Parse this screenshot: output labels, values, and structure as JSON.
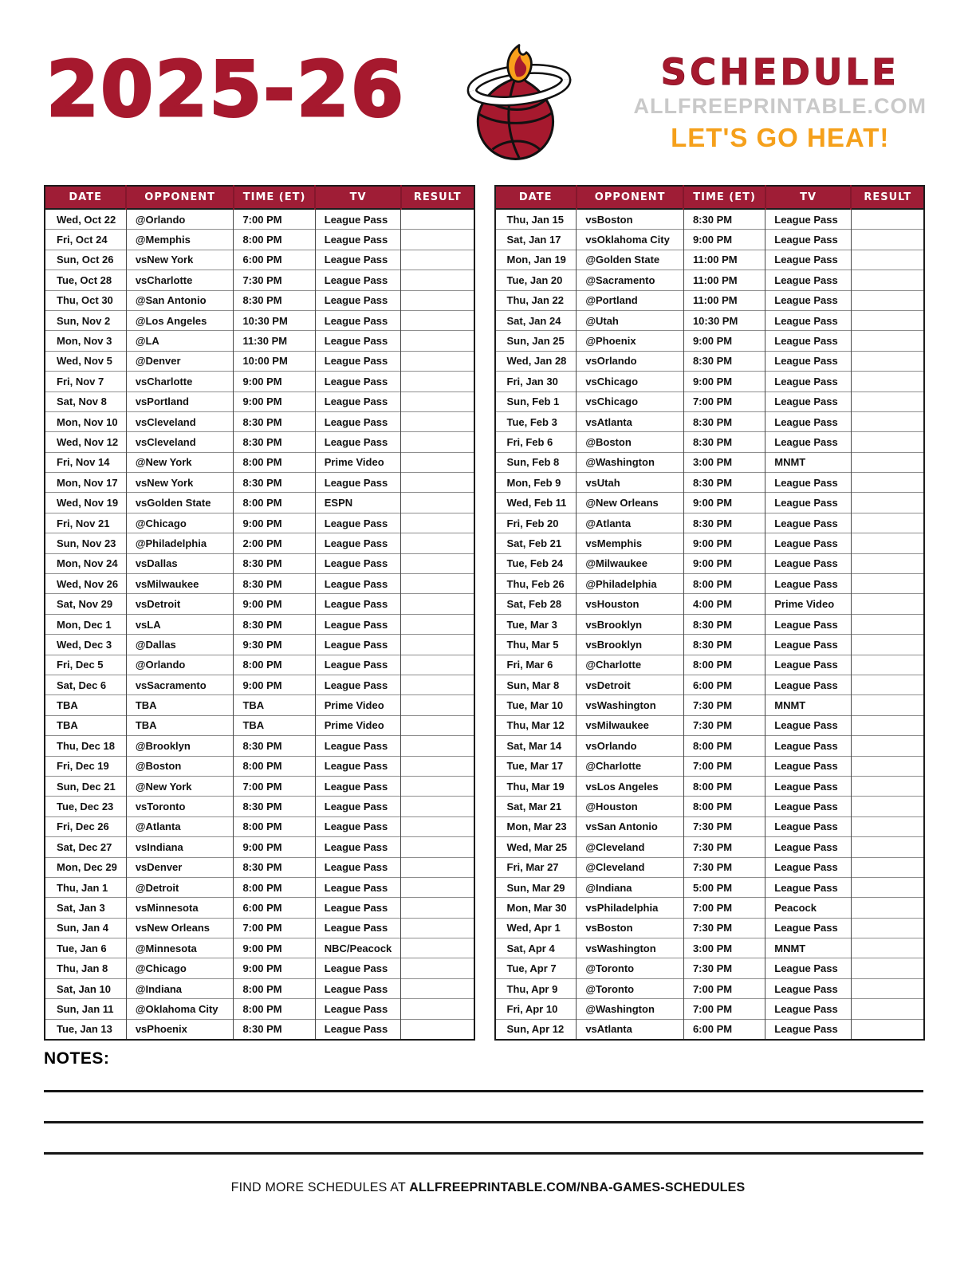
{
  "header": {
    "season": "2025-26",
    "schedule_title": "SCHEDULE",
    "site": "ALLFREEPRINTABLE.COM",
    "tagline": "LET'S GO HEAT!",
    "logo_icon": "miami-heat-flaming-basketball-icon"
  },
  "table_headers": [
    "DATE",
    "OPPONENT",
    "TIME (ET)",
    "TV",
    "RESULT"
  ],
  "left_rows": [
    [
      "Wed, Oct 22",
      "@Orlando",
      "7:00 PM",
      "League Pass",
      ""
    ],
    [
      "Fri, Oct 24",
      "@Memphis",
      "8:00 PM",
      "League Pass",
      ""
    ],
    [
      "Sun, Oct 26",
      "vsNew York",
      "6:00 PM",
      "League Pass",
      ""
    ],
    [
      "Tue, Oct 28",
      "vsCharlotte",
      "7:30 PM",
      "League Pass",
      ""
    ],
    [
      "Thu, Oct 30",
      "@San Antonio",
      "8:30 PM",
      "League Pass",
      ""
    ],
    [
      "Sun, Nov 2",
      "@Los Angeles",
      "10:30 PM",
      "League Pass",
      ""
    ],
    [
      "Mon, Nov 3",
      "@LA",
      "11:30 PM",
      "League Pass",
      ""
    ],
    [
      "Wed, Nov 5",
      "@Denver",
      "10:00 PM",
      "League Pass",
      ""
    ],
    [
      "Fri, Nov 7",
      "vsCharlotte",
      "9:00 PM",
      "League Pass",
      ""
    ],
    [
      "Sat, Nov 8",
      "vsPortland",
      "9:00 PM",
      "League Pass",
      ""
    ],
    [
      "Mon, Nov 10",
      "vsCleveland",
      "8:30 PM",
      "League Pass",
      ""
    ],
    [
      "Wed, Nov 12",
      "vsCleveland",
      "8:30 PM",
      "League Pass",
      ""
    ],
    [
      "Fri, Nov 14",
      "@New York",
      "8:00 PM",
      "Prime Video",
      ""
    ],
    [
      "Mon, Nov 17",
      "vsNew York",
      "8:30 PM",
      "League Pass",
      ""
    ],
    [
      "Wed, Nov 19",
      "vsGolden State",
      "8:00 PM",
      "ESPN",
      ""
    ],
    [
      "Fri, Nov 21",
      "@Chicago",
      "9:00 PM",
      "League Pass",
      ""
    ],
    [
      "Sun, Nov 23",
      "@Philadelphia",
      "2:00 PM",
      "League Pass",
      ""
    ],
    [
      "Mon, Nov 24",
      "vsDallas",
      "8:30 PM",
      "League Pass",
      ""
    ],
    [
      "Wed, Nov 26",
      "vsMilwaukee",
      "8:30 PM",
      "League Pass",
      ""
    ],
    [
      "Sat, Nov 29",
      "vsDetroit",
      "9:00 PM",
      "League Pass",
      ""
    ],
    [
      "Mon, Dec 1",
      "vsLA",
      "8:30 PM",
      "League Pass",
      ""
    ],
    [
      "Wed, Dec 3",
      "@Dallas",
      "9:30 PM",
      "League Pass",
      ""
    ],
    [
      "Fri, Dec 5",
      "@Orlando",
      "8:00 PM",
      "League Pass",
      ""
    ],
    [
      "Sat, Dec 6",
      "vsSacramento",
      "9:00 PM",
      "League Pass",
      ""
    ],
    [
      "TBA",
      "TBA",
      "TBA",
      "Prime Video",
      ""
    ],
    [
      "TBA",
      "TBA",
      "TBA",
      "Prime Video",
      ""
    ],
    [
      "Thu, Dec 18",
      "@Brooklyn",
      "8:30 PM",
      "League Pass",
      ""
    ],
    [
      "Fri, Dec 19",
      "@Boston",
      "8:00 PM",
      "League Pass",
      ""
    ],
    [
      "Sun, Dec 21",
      "@New York",
      "7:00 PM",
      "League Pass",
      ""
    ],
    [
      "Tue, Dec 23",
      "vsToronto",
      "8:30 PM",
      "League Pass",
      ""
    ],
    [
      "Fri, Dec 26",
      "@Atlanta",
      "8:00 PM",
      "League Pass",
      ""
    ],
    [
      "Sat, Dec 27",
      "vsIndiana",
      "9:00 PM",
      "League Pass",
      ""
    ],
    [
      "Mon, Dec 29",
      "vsDenver",
      "8:30 PM",
      "League Pass",
      ""
    ],
    [
      "Thu, Jan 1",
      "@Detroit",
      "8:00 PM",
      "League Pass",
      ""
    ],
    [
      "Sat, Jan 3",
      "vsMinnesota",
      "6:00 PM",
      "League Pass",
      ""
    ],
    [
      "Sun, Jan 4",
      "vsNew Orleans",
      "7:00 PM",
      "League Pass",
      ""
    ],
    [
      "Tue, Jan 6",
      "@Minnesota",
      "9:00 PM",
      "NBC/Peacock",
      ""
    ],
    [
      "Thu, Jan 8",
      "@Chicago",
      "9:00 PM",
      "League Pass",
      ""
    ],
    [
      "Sat, Jan 10",
      "@Indiana",
      "8:00 PM",
      "League Pass",
      ""
    ],
    [
      "Sun, Jan 11",
      "@Oklahoma City",
      "8:00 PM",
      "League Pass",
      ""
    ],
    [
      "Tue, Jan 13",
      "vsPhoenix",
      "8:30 PM",
      "League Pass",
      ""
    ]
  ],
  "right_rows": [
    [
      "Thu, Jan 15",
      "vsBoston",
      "8:30 PM",
      "League Pass",
      ""
    ],
    [
      "Sat, Jan 17",
      "vsOklahoma City",
      "9:00 PM",
      "League Pass",
      ""
    ],
    [
      "Mon, Jan 19",
      "@Golden State",
      "11:00 PM",
      "League Pass",
      ""
    ],
    [
      "Tue, Jan 20",
      "@Sacramento",
      "11:00 PM",
      "League Pass",
      ""
    ],
    [
      "Thu, Jan 22",
      "@Portland",
      "11:00 PM",
      "League Pass",
      ""
    ],
    [
      "Sat, Jan 24",
      "@Utah",
      "10:30 PM",
      "League Pass",
      ""
    ],
    [
      "Sun, Jan 25",
      "@Phoenix",
      "9:00 PM",
      "League Pass",
      ""
    ],
    [
      "Wed, Jan 28",
      "vsOrlando",
      "8:30 PM",
      "League Pass",
      ""
    ],
    [
      "Fri, Jan 30",
      "vsChicago",
      "9:00 PM",
      "League Pass",
      ""
    ],
    [
      "Sun, Feb 1",
      "vsChicago",
      "7:00 PM",
      "League Pass",
      ""
    ],
    [
      "Tue, Feb 3",
      "vsAtlanta",
      "8:30 PM",
      "League Pass",
      ""
    ],
    [
      "Fri, Feb 6",
      "@Boston",
      "8:30 PM",
      "League Pass",
      ""
    ],
    [
      "Sun, Feb 8",
      "@Washington",
      "3:00 PM",
      "MNMT",
      ""
    ],
    [
      "Mon, Feb 9",
      "vsUtah",
      "8:30 PM",
      "League Pass",
      ""
    ],
    [
      "Wed, Feb 11",
      "@New Orleans",
      "9:00 PM",
      "League Pass",
      ""
    ],
    [
      "Fri, Feb 20",
      "@Atlanta",
      "8:30 PM",
      "League Pass",
      ""
    ],
    [
      "Sat, Feb 21",
      "vsMemphis",
      "9:00 PM",
      "League Pass",
      ""
    ],
    [
      "Tue, Feb 24",
      "@Milwaukee",
      "9:00 PM",
      "League Pass",
      ""
    ],
    [
      "Thu, Feb 26",
      "@Philadelphia",
      "8:00 PM",
      "League Pass",
      ""
    ],
    [
      "Sat, Feb 28",
      "vsHouston",
      "4:00 PM",
      "Prime Video",
      ""
    ],
    [
      "Tue, Mar 3",
      "vsBrooklyn",
      "8:30 PM",
      "League Pass",
      ""
    ],
    [
      "Thu, Mar 5",
      "vsBrooklyn",
      "8:30 PM",
      "League Pass",
      ""
    ],
    [
      "Fri, Mar 6",
      "@Charlotte",
      "8:00 PM",
      "League Pass",
      ""
    ],
    [
      "Sun, Mar 8",
      "vsDetroit",
      "6:00 PM",
      "League Pass",
      ""
    ],
    [
      "Tue, Mar 10",
      "vsWashington",
      "7:30 PM",
      "MNMT",
      ""
    ],
    [
      "Thu, Mar 12",
      "vsMilwaukee",
      "7:30 PM",
      "League Pass",
      ""
    ],
    [
      "Sat, Mar 14",
      "vsOrlando",
      "8:00 PM",
      "League Pass",
      ""
    ],
    [
      "Tue, Mar 17",
      "@Charlotte",
      "7:00 PM",
      "League Pass",
      ""
    ],
    [
      "Thu, Mar 19",
      "vsLos Angeles",
      "8:00 PM",
      "League Pass",
      ""
    ],
    [
      "Sat, Mar 21",
      "@Houston",
      "8:00 PM",
      "League Pass",
      ""
    ],
    [
      "Mon, Mar 23",
      "vsSan Antonio",
      "7:30 PM",
      "League Pass",
      ""
    ],
    [
      "Wed, Mar 25",
      "@Cleveland",
      "7:30 PM",
      "League Pass",
      ""
    ],
    [
      "Fri, Mar 27",
      "@Cleveland",
      "7:30 PM",
      "League Pass",
      ""
    ],
    [
      "Sun, Mar 29",
      "@Indiana",
      "5:00 PM",
      "League Pass",
      ""
    ],
    [
      "Mon, Mar 30",
      "vsPhiladelphia",
      "7:00 PM",
      "Peacock",
      ""
    ],
    [
      "Wed, Apr 1",
      "vsBoston",
      "7:30 PM",
      "League Pass",
      ""
    ],
    [
      "Sat, Apr 4",
      "vsWashington",
      "3:00 PM",
      "MNMT",
      ""
    ],
    [
      "Tue, Apr 7",
      "@Toronto",
      "7:30 PM",
      "League Pass",
      ""
    ],
    [
      "Thu, Apr 9",
      "@Toronto",
      "7:00 PM",
      "League Pass",
      ""
    ],
    [
      "Fri, Apr 10",
      "@Washington",
      "7:00 PM",
      "League Pass",
      ""
    ],
    [
      "Sun, Apr 12",
      "vsAtlanta",
      "6:00 PM",
      "League Pass",
      ""
    ]
  ],
  "notes_label": "NOTES:",
  "footer": {
    "prefix": "FIND MORE SCHEDULES AT ",
    "url": "ALLFREEPRINTABLE.COM/NBA-GAMES-SCHEDULES"
  },
  "colors": {
    "heat_red": "#9F1D36",
    "title_red": "#A6192E",
    "gold": "#F5A01B",
    "flame_orange": "#F9A01B",
    "light_gray": "#C9C9C9"
  }
}
